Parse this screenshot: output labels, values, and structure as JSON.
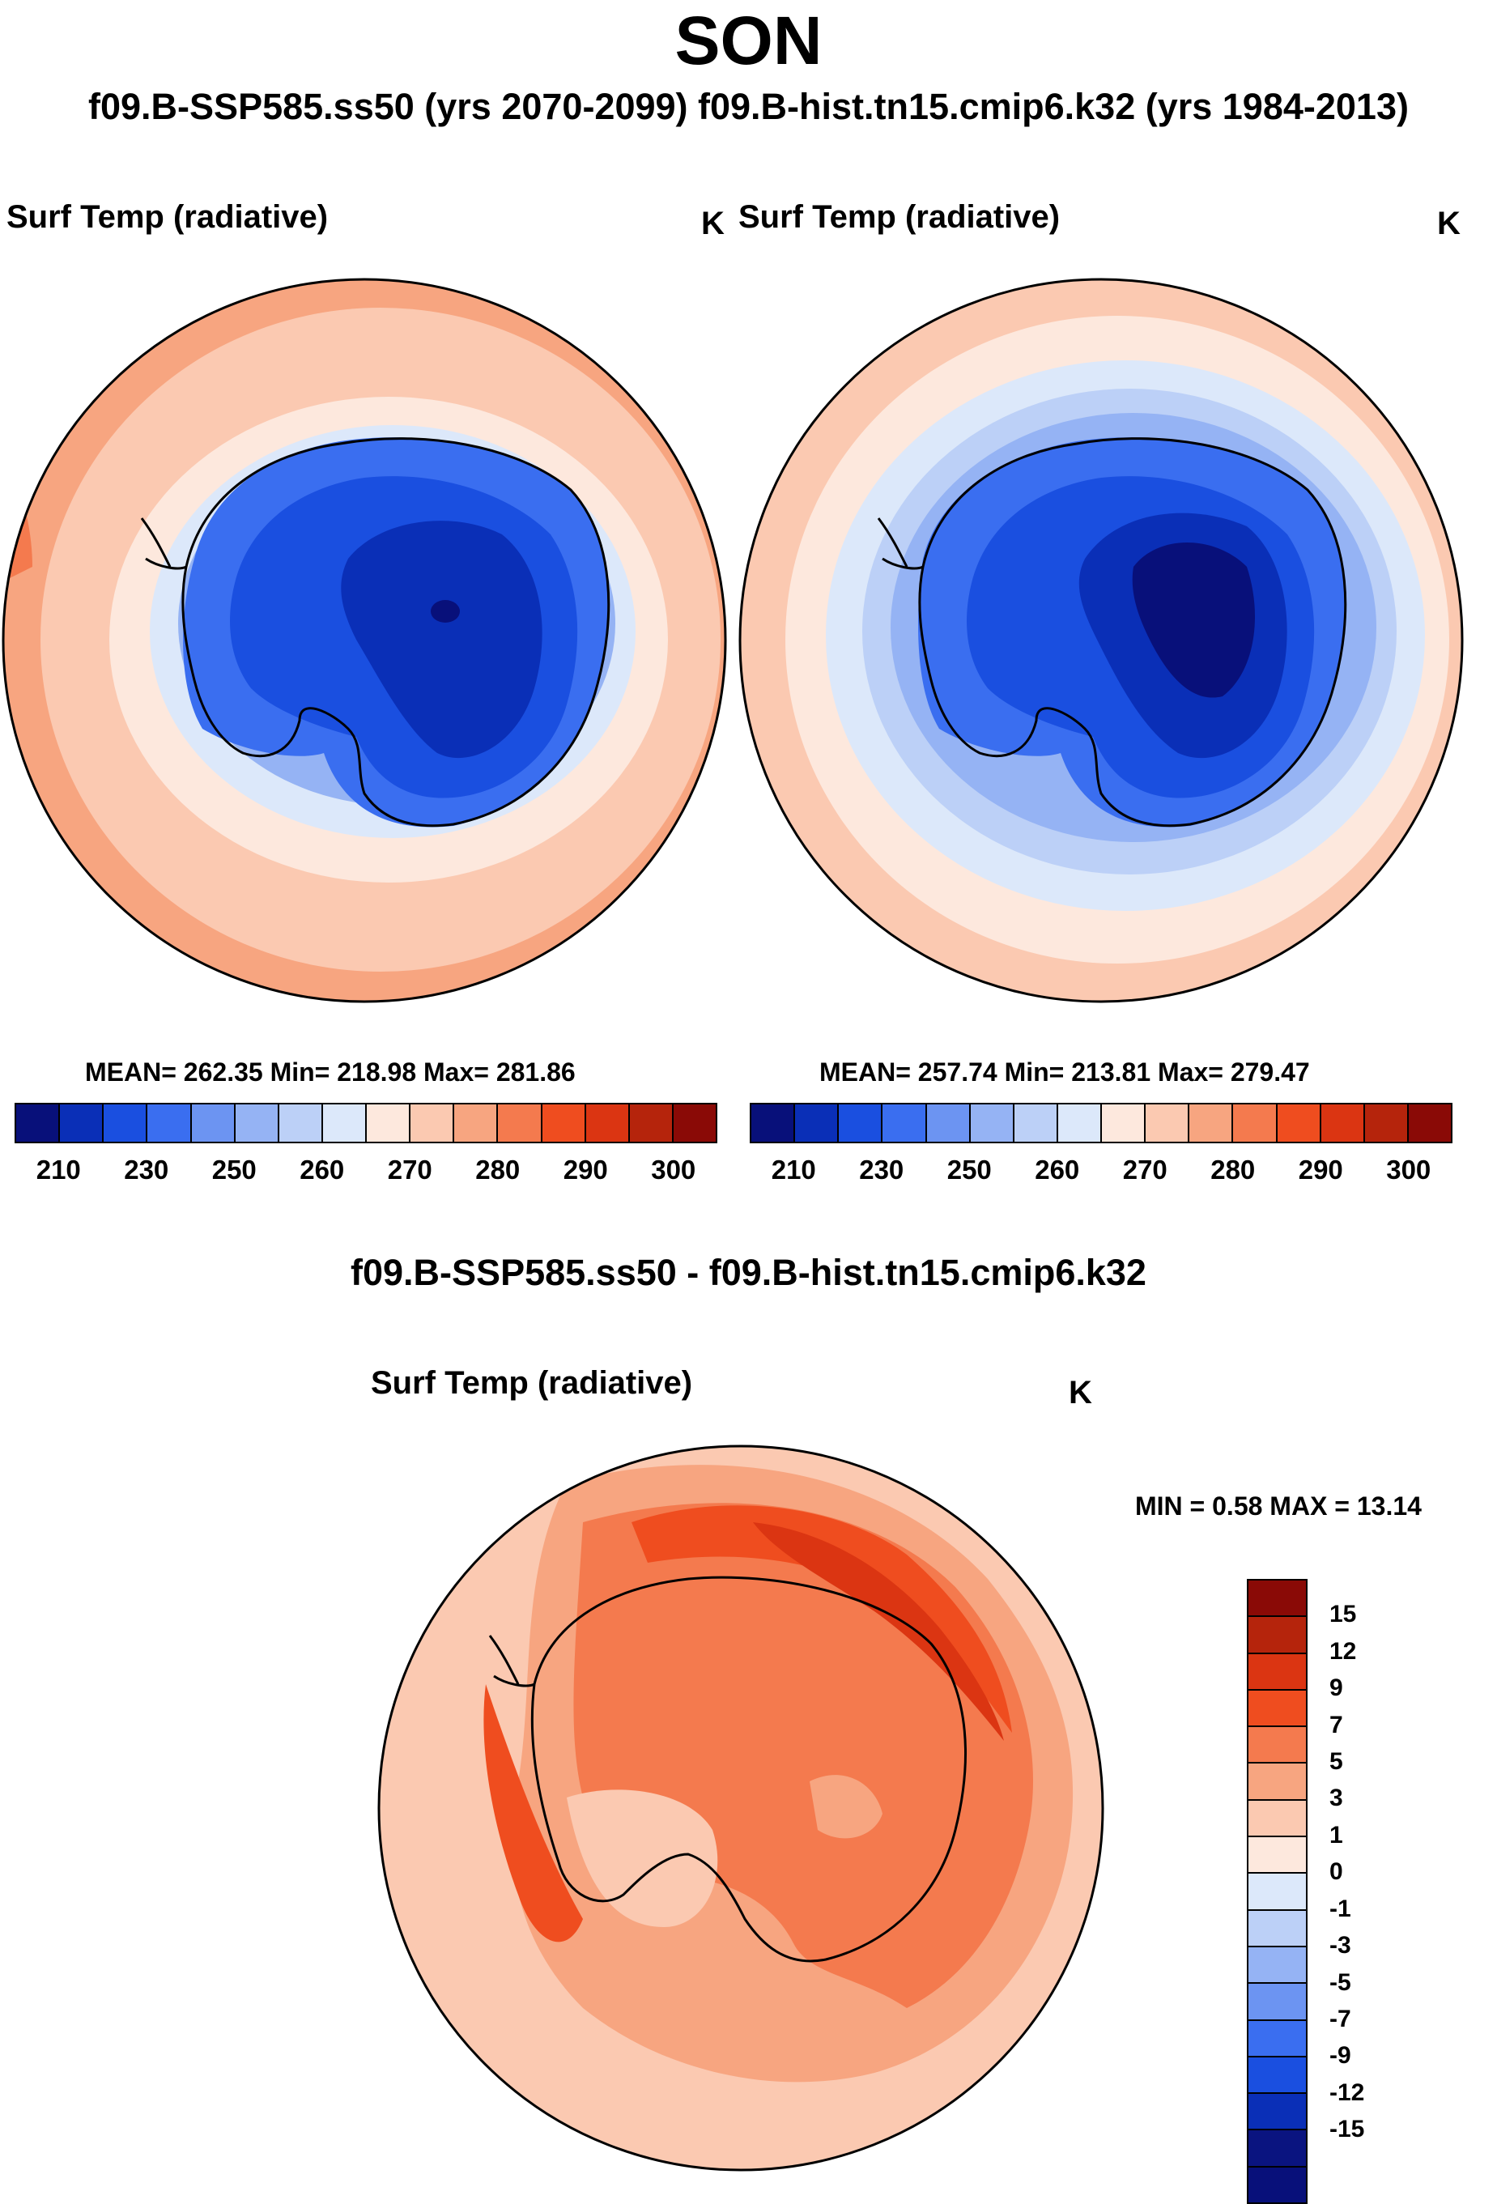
{
  "figure": {
    "title": "SON",
    "subtitle": "f09.B-SSP585.ss50 (yrs 2070-2099)  f09.B-hist.tn15.cmip6.k32 (yrs 1984-2013)",
    "diff_title": "f09.B-SSP585.ss50 - f09.B-hist.tn15.cmip6.k32"
  },
  "panels": {
    "left": {
      "variable": "Surf Temp (radiative)",
      "units": "K",
      "stats": "MEAN= 262.35  Min= 218.98  Max= 281.86"
    },
    "right": {
      "variable": "Surf Temp (radiative)",
      "units": "K",
      "stats": "MEAN= 257.74  Min= 213.81  Max= 279.47"
    },
    "diff": {
      "variable": "Surf Temp (radiative)",
      "units": "K",
      "stats": "MIN =   0.58 MAX =  13.14"
    }
  },
  "colorbars": {
    "abs_colors": [
      "#08107a",
      "#0a2fb7",
      "#1a4fe0",
      "#3a6ef0",
      "#6c94f2",
      "#95b3f4",
      "#bcd0f7",
      "#dce8fa",
      "#fde8dd",
      "#fbc9b1",
      "#f7a580",
      "#f47a4e",
      "#ef4d1f",
      "#db3512",
      "#b5240c",
      "#8a0a06"
    ],
    "abs_ticks": [
      "210",
      "230",
      "250",
      "260",
      "270",
      "280",
      "290",
      "300"
    ],
    "diff_colors": [
      "#8a0a06",
      "#b5240c",
      "#db3512",
      "#ef4d1f",
      "#f47a4e",
      "#f7a580",
      "#fbc9b1",
      "#fde8dd",
      "#dce8fa",
      "#bcd0f7",
      "#95b3f4",
      "#6c94f2",
      "#3a6ef0",
      "#1a4fe0",
      "#0a2fb7",
      "#0a1480",
      "#08107a"
    ],
    "diff_ticks": [
      "15",
      "12",
      "9",
      "7",
      "5",
      "3",
      "1",
      "0",
      "-1",
      "-3",
      "-5",
      "-7",
      "-9",
      "-12",
      "-15"
    ]
  }
}
